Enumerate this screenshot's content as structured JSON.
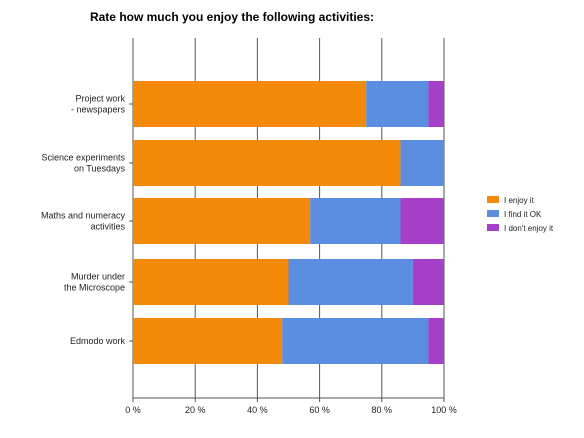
{
  "chart_data": {
    "type": "bar",
    "orientation": "horizontal",
    "stacked": true,
    "title": "Rate how much you enjoy the following activities:",
    "categories": [
      [
        "Project work",
        "- newspapers"
      ],
      [
        "Science experiments",
        "on Tuesdays"
      ],
      [
        "Maths and numeracy",
        "activities"
      ],
      [
        "Murder under",
        "the Microscope"
      ],
      [
        "Edmodo work"
      ]
    ],
    "series": [
      {
        "name": "I enjoy it",
        "color": "#f48a0a",
        "values": [
          75,
          86,
          57,
          50,
          48
        ]
      },
      {
        "name": "I find it OK",
        "color": "#5b8de0",
        "values": [
          20,
          14,
          29,
          40,
          47
        ]
      },
      {
        "name": "I don't enjoy it",
        "color": "#a640c8",
        "values": [
          5,
          0,
          14,
          10,
          5
        ]
      }
    ],
    "xlim": [
      0,
      100
    ],
    "xticks": [
      "0 %",
      "20 %",
      "40 %",
      "60 %",
      "80 %",
      "100 %"
    ],
    "grid": true,
    "legend_position": "right"
  }
}
